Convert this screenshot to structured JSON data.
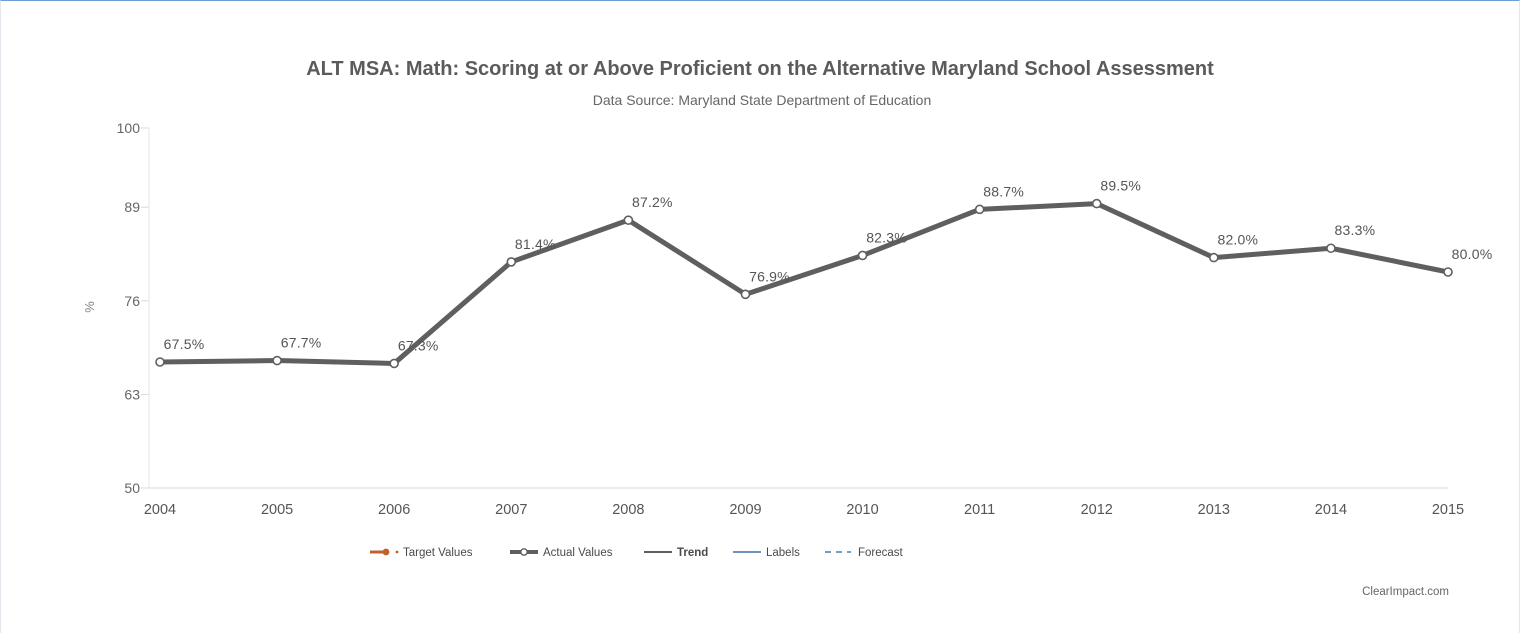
{
  "chart_data": {
    "type": "line",
    "title": "ALT MSA: Math: Scoring at or Above Proficient on the Alternative Maryland School Assessment",
    "subtitle": "Data Source: Maryland State Department of Education",
    "xlabel": "",
    "ylabel": "%",
    "ylim": [
      50,
      100
    ],
    "yticks": [
      "50",
      "63",
      "76",
      "89",
      "100"
    ],
    "grid": false,
    "categories": [
      "2004",
      "2005",
      "2006",
      "2007",
      "2008",
      "2009",
      "2010",
      "2011",
      "2012",
      "2013",
      "2014",
      "2015"
    ],
    "series": [
      {
        "name": "Actual Values",
        "values": [
          67.5,
          67.7,
          67.3,
          81.4,
          87.2,
          76.9,
          82.3,
          88.7,
          89.5,
          82.0,
          83.3,
          80.0
        ],
        "labels": [
          "67.5%",
          "67.7%",
          "67.3%",
          "81.4%",
          "87.2%",
          "76.9%",
          "82.3%",
          "88.7%",
          "89.5%",
          "82.0%",
          "83.3%",
          "80.0%"
        ],
        "color": "#5f5f5f"
      }
    ],
    "legend": {
      "position": "bottom-center",
      "items": [
        {
          "label": "Target Values",
          "color": "#c0632a",
          "style": "target"
        },
        {
          "label": "Actual Values",
          "color": "#5f5f5f",
          "style": "actual"
        },
        {
          "label": "Trend",
          "color": "#2a2a2a",
          "style": "line"
        },
        {
          "label": "Labels",
          "color": "#3d6fa5",
          "style": "line"
        },
        {
          "label": "Forecast",
          "color": "#3d7fc0",
          "style": "dashed"
        }
      ]
    },
    "credit": "ClearImpact.com"
  }
}
